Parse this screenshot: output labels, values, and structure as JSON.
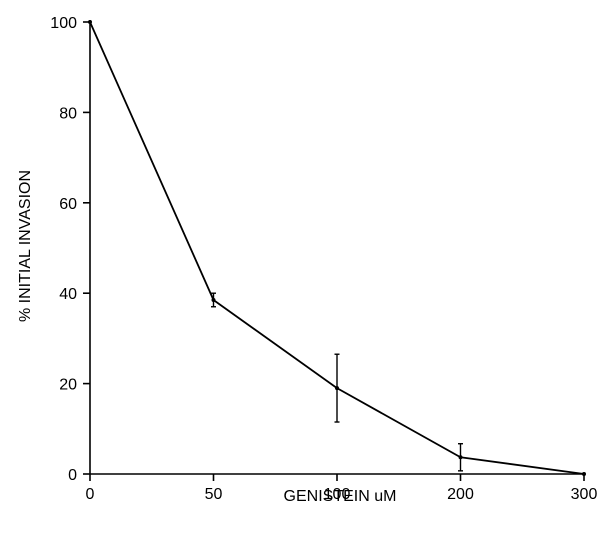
{
  "chart_data": {
    "type": "line",
    "title": "",
    "xlabel": "GENISTEIN uM",
    "ylabel": "% INITIAL INVASION",
    "x_categories": [
      "0",
      "50",
      "100",
      "200",
      "300"
    ],
    "y_ticks": [
      0,
      20,
      40,
      60,
      80,
      100
    ],
    "ylim": [
      0,
      100
    ],
    "grid": false,
    "series": [
      {
        "points": [
          {
            "x": "0",
            "y": 100,
            "err": 0
          },
          {
            "x": "50",
            "y": 38.5,
            "err": 1.5
          },
          {
            "x": "100",
            "y": 19,
            "err": 7.5
          },
          {
            "x": "200",
            "y": 3.7,
            "err": 3
          },
          {
            "x": "300",
            "y": 0,
            "err": 0
          }
        ]
      }
    ]
  }
}
